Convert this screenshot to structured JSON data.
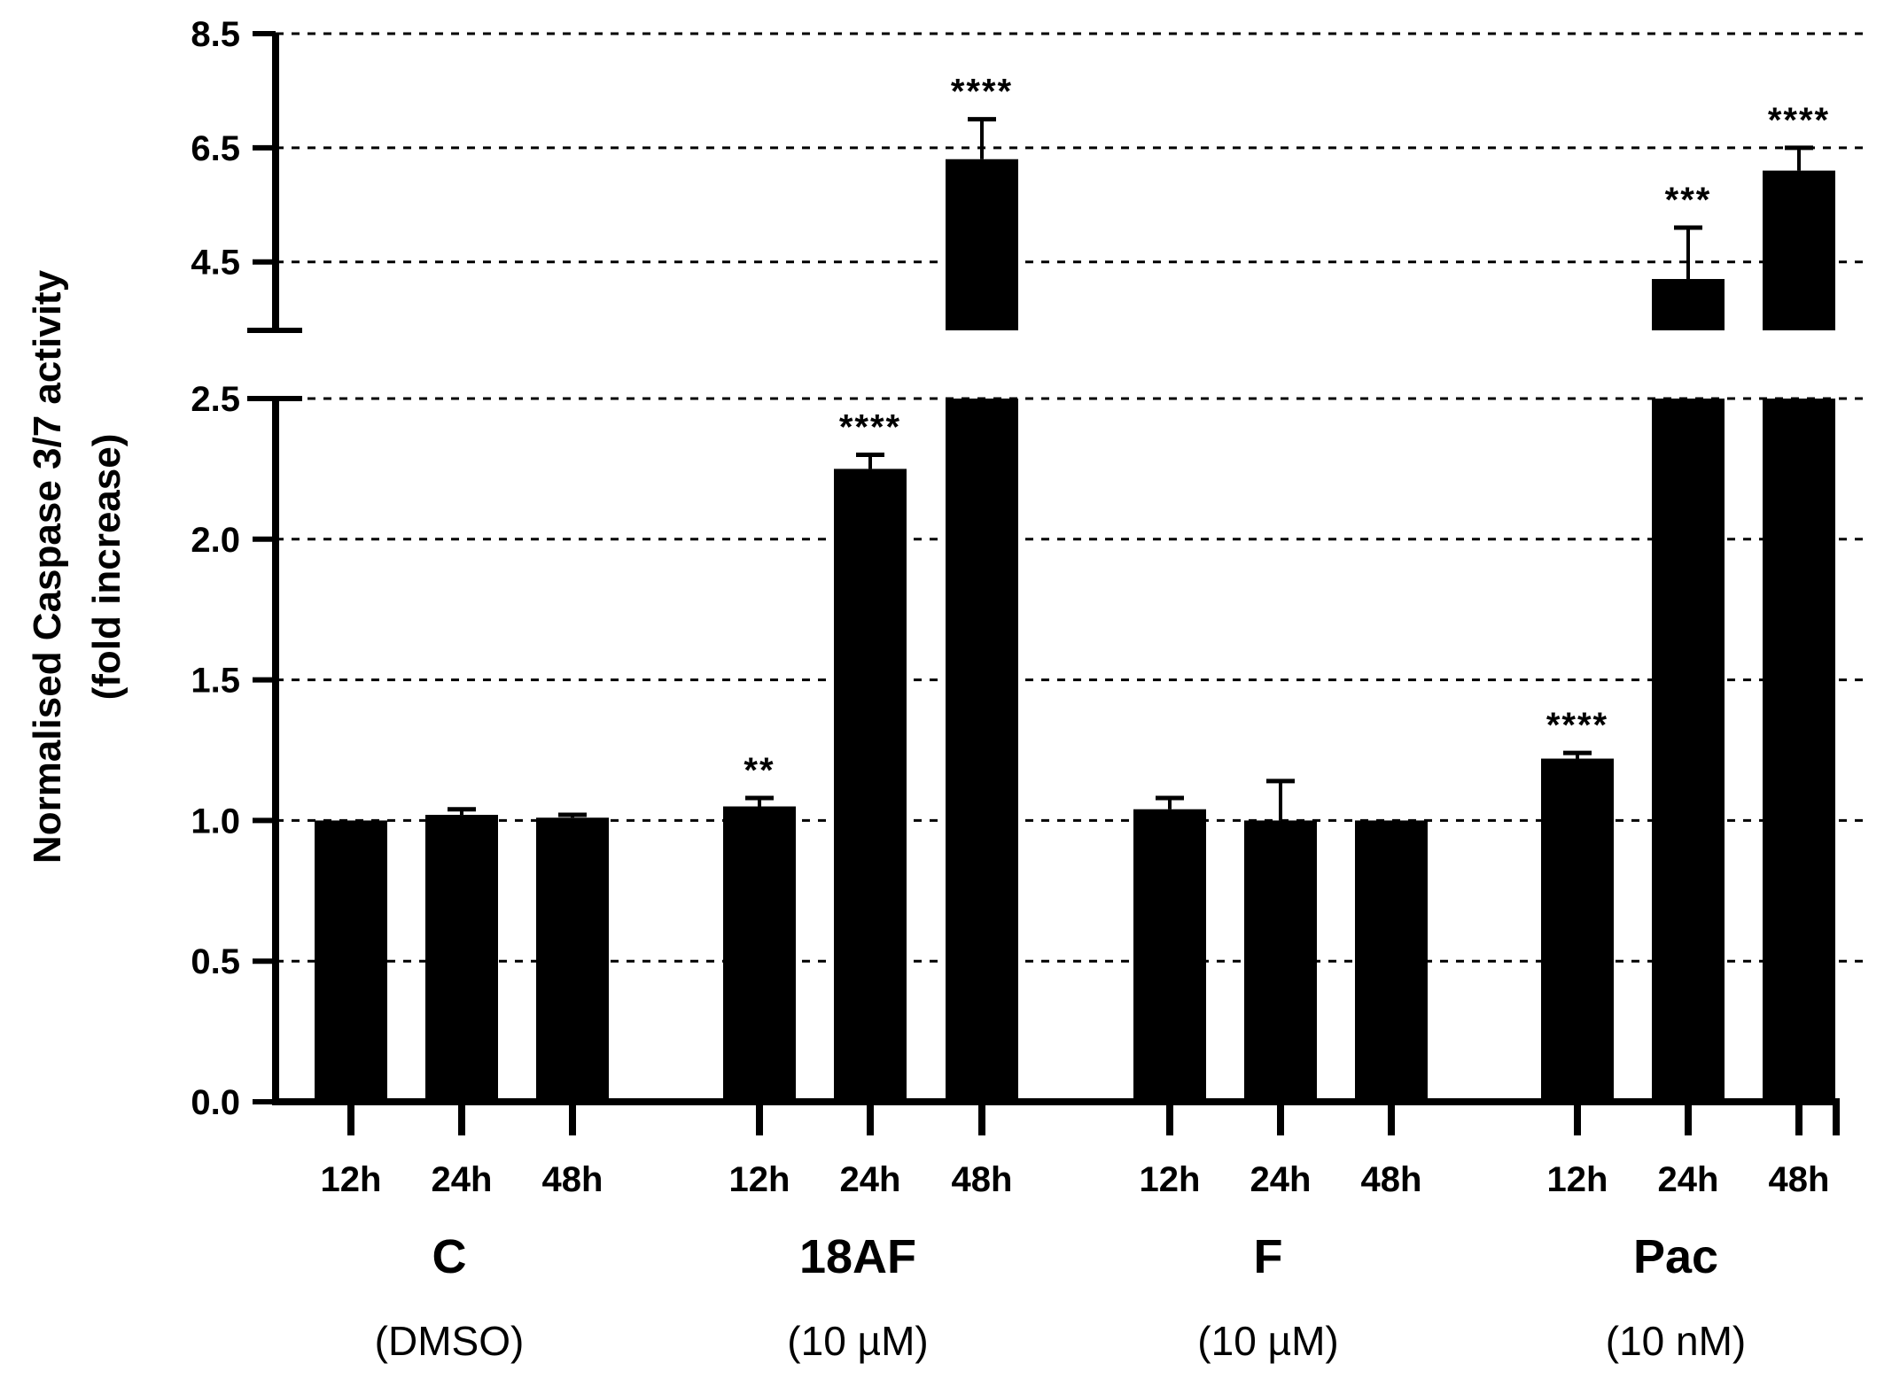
{
  "chart_data": {
    "type": "bar",
    "title": "",
    "ylabel_lines": [
      "Normalised Caspase 3/7 activity",
      "(fold increase)"
    ],
    "y_axis": {
      "broken": true,
      "lower_range": [
        0.0,
        2.5
      ],
      "upper_range": [
        3.3,
        8.5
      ],
      "lower_ticks": [
        "0.0",
        "0.5",
        "1.0",
        "1.5",
        "2.0",
        "2.5"
      ],
      "upper_ticks": [
        "4.5",
        "6.5",
        "8.5"
      ],
      "gridlines": "dashed"
    },
    "groups": [
      {
        "label": "C",
        "sublabel": "(DMSO)",
        "categories": [
          "12h",
          "24h",
          "48h"
        ],
        "values": [
          1.0,
          1.02,
          1.01
        ],
        "errors": [
          0.0,
          0.02,
          0.01
        ],
        "significance": [
          "",
          "",
          ""
        ]
      },
      {
        "label": "18AF",
        "sublabel": "(10 µM)",
        "categories": [
          "12h",
          "24h",
          "48h"
        ],
        "values": [
          1.05,
          2.25,
          6.3
        ],
        "errors": [
          0.03,
          0.05,
          0.7
        ],
        "significance": [
          "**",
          "****",
          "****"
        ]
      },
      {
        "label": "F",
        "sublabel": "(10 µM)",
        "categories": [
          "12h",
          "24h",
          "48h"
        ],
        "values": [
          1.04,
          1.0,
          1.0
        ],
        "errors": [
          0.04,
          0.14,
          0.0
        ],
        "significance": [
          "",
          "",
          ""
        ]
      },
      {
        "label": "Pac",
        "sublabel": "(10 nM)",
        "categories": [
          "12h",
          "24h",
          "48h"
        ],
        "values": [
          1.22,
          4.2,
          6.1
        ],
        "errors": [
          0.02,
          0.9,
          0.4
        ],
        "significance": [
          "****",
          "***",
          "****"
        ]
      }
    ],
    "colors": {
      "bar": "#000000",
      "grid": "#000000"
    }
  }
}
